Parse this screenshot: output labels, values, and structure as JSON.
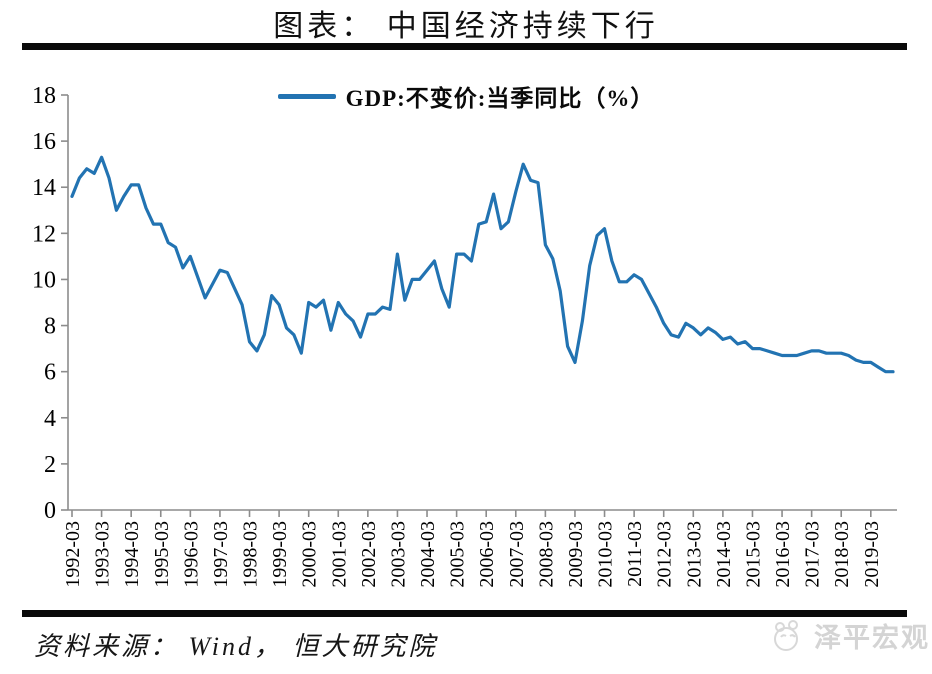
{
  "page": {
    "title": "图表： 中国经济持续下行",
    "source": "资料来源： Wind， 恒大研究院",
    "watermark": "泽平宏观"
  },
  "legend": {
    "label": "GDP:不变价:当季同比（%）"
  },
  "colors": {
    "line": "#2273b2",
    "axis": "#8c8c8c",
    "tick_label": "#000000",
    "divider": "#0a0a0a",
    "watermark": "#d4d4d4",
    "background": "#ffffff"
  },
  "chart_data": {
    "type": "line",
    "title": "图表： 中国经济持续下行",
    "series_name": "GDP:不变价:当季同比（%）",
    "frequency": "quarterly",
    "first_period": "1992-03",
    "last_period": "2019-12",
    "legend_position": "top",
    "grid": false,
    "ylim": [
      0,
      18
    ],
    "y_ticks": [
      0,
      2,
      4,
      6,
      8,
      10,
      12,
      14,
      16,
      18
    ],
    "x_tick_labels": [
      "1992-03",
      "1993-03",
      "1994-03",
      "1995-03",
      "1996-03",
      "1997-03",
      "1998-03",
      "1999-03",
      "2000-03",
      "2001-03",
      "2002-03",
      "2003-03",
      "2004-03",
      "2005-03",
      "2006-03",
      "2007-03",
      "2008-03",
      "2009-03",
      "2010-03",
      "2011-03",
      "2012-03",
      "2013-03",
      "2014-03",
      "2015-03",
      "2016-03",
      "2017-03",
      "2018-03",
      "2019-03"
    ],
    "values": [
      13.6,
      14.4,
      14.8,
      14.6,
      15.3,
      14.4,
      13.0,
      13.6,
      14.1,
      14.1,
      13.1,
      12.4,
      12.4,
      11.6,
      11.4,
      10.5,
      11.0,
      10.1,
      9.2,
      9.8,
      10.4,
      10.3,
      9.6,
      8.9,
      7.3,
      6.9,
      7.6,
      9.3,
      8.9,
      7.9,
      7.6,
      6.8,
      9.0,
      8.8,
      9.1,
      7.8,
      9.0,
      8.5,
      8.2,
      7.5,
      8.5,
      8.5,
      8.8,
      8.7,
      11.1,
      9.1,
      10.0,
      10.0,
      10.4,
      10.8,
      9.6,
      8.8,
      11.1,
      11.1,
      10.8,
      12.4,
      12.5,
      13.7,
      12.2,
      12.5,
      13.8,
      15.0,
      14.3,
      14.2,
      11.5,
      10.9,
      9.5,
      7.1,
      6.4,
      8.2,
      10.6,
      11.9,
      12.2,
      10.8,
      9.9,
      9.9,
      10.2,
      10.0,
      9.4,
      8.8,
      8.1,
      7.6,
      7.5,
      8.1,
      7.9,
      7.6,
      7.9,
      7.7,
      7.4,
      7.5,
      7.2,
      7.3,
      7.0,
      7.0,
      6.9,
      6.8,
      6.7,
      6.7,
      6.7,
      6.8,
      6.9,
      6.9,
      6.8,
      6.8,
      6.8,
      6.7,
      6.5,
      6.4,
      6.4,
      6.2,
      6.0,
      6.0
    ]
  }
}
